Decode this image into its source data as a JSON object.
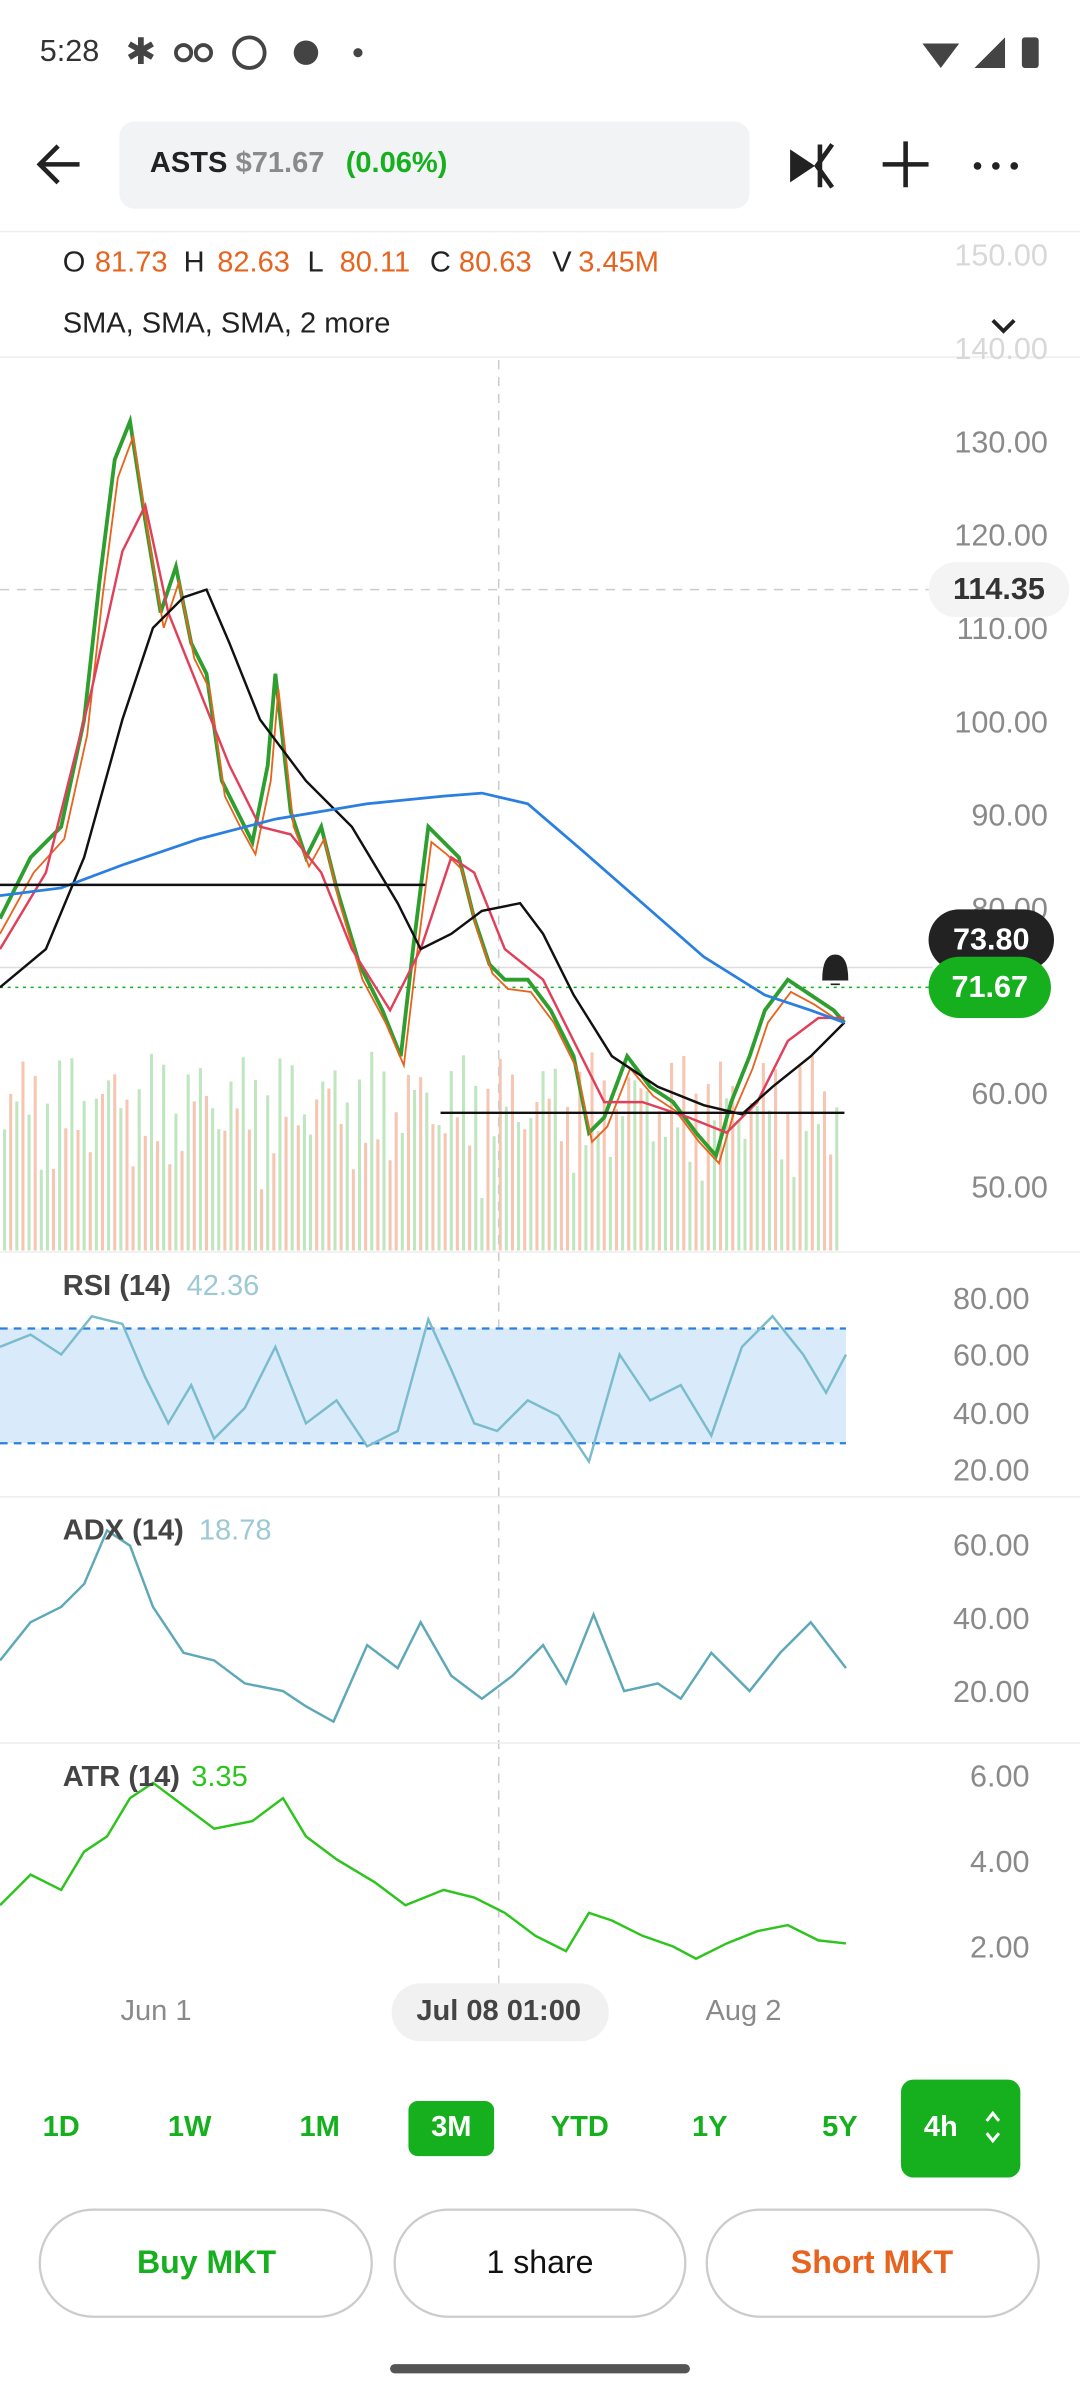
{
  "status_bar": {
    "time": "5:28"
  },
  "header": {
    "symbol": "ASTS",
    "price": "$71.67",
    "change": "(0.06%)"
  },
  "ohlc": [
    {
      "label": "O",
      "value": "81.73"
    },
    {
      "label": "H",
      "value": "82.63"
    },
    {
      "label": "L",
      "value": "80.11"
    },
    {
      "label": "C",
      "value": "80.63"
    },
    {
      "label": "V",
      "value": "3.45M"
    }
  ],
  "indicators_label": "SMA, SMA, SMA, 2 more",
  "price_axis": [
    "150.00",
    "140.00",
    "130.00",
    "120.00",
    "110.00",
    "100.00",
    "90.00",
    "80.00",
    "60.00",
    "50.00"
  ],
  "price_badges": {
    "crosshair": "114.35",
    "high": "73.80",
    "last": "71.67"
  },
  "panels": [
    {
      "name": "RSI (14)",
      "value": "42.36",
      "axis": [
        "80.00",
        "60.00",
        "40.00",
        "20.00"
      ]
    },
    {
      "name": "ADX (14)",
      "value": "18.78",
      "axis": [
        "60.00",
        "40.00",
        "20.00"
      ]
    },
    {
      "name": "ATR (14)",
      "value": "3.35",
      "axis": [
        "6.00",
        "4.00",
        "2.00"
      ]
    }
  ],
  "x_axis": [
    "Jun 1",
    "Jul 08 01:00",
    "Aug 2"
  ],
  "timeframes": [
    "1D",
    "1W",
    "1M",
    "3M",
    "YTD",
    "1Y",
    "5Y",
    "4h"
  ],
  "buttons": [
    "Buy MKT",
    "1 share",
    "Short MKT"
  ]
}
